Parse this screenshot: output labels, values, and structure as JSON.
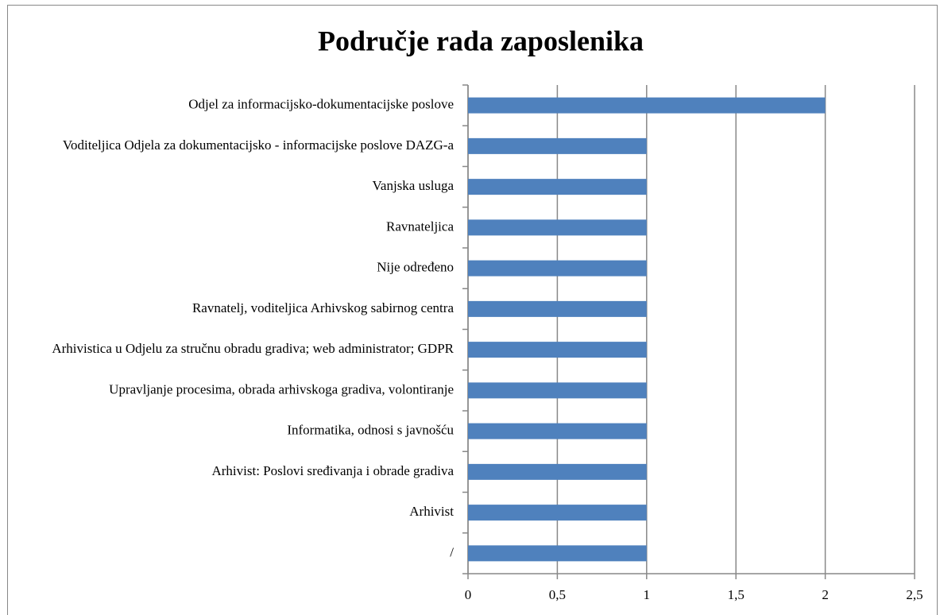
{
  "chart_data": {
    "type": "hbar",
    "title": "Područje rada zaposlenika",
    "categories": [
      "Odjel za informacijsko-dokumentacijske poslove",
      "Voditeljica Odjela za dokumentacijsko - informacijske poslove DAZG-a",
      "Vanjska usluga",
      "Ravnateljica",
      "Nije određeno",
      "Ravnatelj, voditeljica Arhivskog sabirnog centra",
      "Arhivistica u Odjelu za stručnu obradu gradiva; web administrator; GDPR",
      "Upravljanje procesima, obrada arhivskoga gradiva, volontiranje",
      "Informatika, odnosi s javnošću",
      "Arhivist: Poslovi sređivanja i obrade gradiva",
      "Arhivist",
      "/"
    ],
    "values": [
      2,
      1,
      1,
      1,
      1,
      1,
      1,
      1,
      1,
      1,
      1,
      1
    ],
    "color": "#4f81bd",
    "xlim": [
      0,
      2.5
    ],
    "xticks": [
      0,
      {
        "value": 0.5,
        "label": "0,5"
      },
      1,
      {
        "value": 1.5,
        "label": "1,5"
      },
      2,
      {
        "value": 2.5,
        "label": "2,5"
      }
    ],
    "grid": true
  }
}
